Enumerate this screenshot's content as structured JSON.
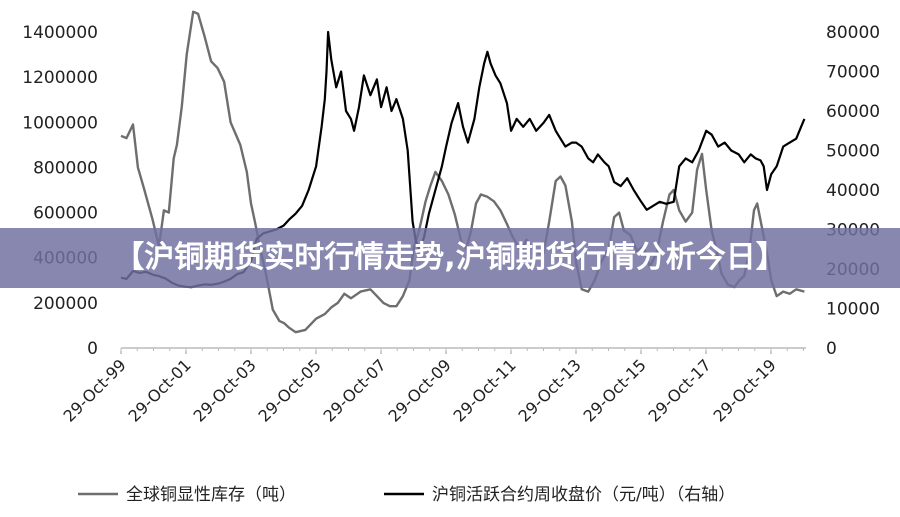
{
  "banner": {
    "title": "【沪铜期货实时行情走势,沪铜期货行情分析今日】"
  },
  "chart_data": {
    "type": "line",
    "title": "",
    "xlabel": "",
    "x_ticks": [
      "29-Oct-99",
      "29-Oct-01",
      "29-Oct-03",
      "29-Oct-05",
      "29-Oct-07",
      "29-Oct-09",
      "29-Oct-11",
      "29-Oct-13",
      "29-Oct-15",
      "29-Oct-17",
      "29-Oct-19"
    ],
    "x_range": [
      1999.83,
      2020.9
    ],
    "y_left": {
      "ticks": [
        "0",
        "200000",
        "400000",
        "600000",
        "800000",
        "1000000",
        "1200000",
        "1400000"
      ],
      "range": [
        0,
        1400000
      ]
    },
    "y_right": {
      "ticks": [
        "0",
        "10000",
        "20000",
        "30000",
        "40000",
        "50000",
        "60000",
        "70000",
        "80000"
      ],
      "range": [
        0,
        80000
      ]
    },
    "legend_position": "bottom",
    "grid": false,
    "series": [
      {
        "name": "全球铜显性库存（吨）",
        "axis": "left",
        "color": "#6e6e6e",
        "points": [
          [
            1999.83,
            940000
          ],
          [
            2000.0,
            930000
          ],
          [
            2000.2,
            990000
          ],
          [
            2000.35,
            800000
          ],
          [
            2000.55,
            700000
          ],
          [
            2000.8,
            570000
          ],
          [
            2001.0,
            450000
          ],
          [
            2001.15,
            610000
          ],
          [
            2001.3,
            600000
          ],
          [
            2001.45,
            840000
          ],
          [
            2001.55,
            900000
          ],
          [
            2001.7,
            1070000
          ],
          [
            2001.85,
            1300000
          ],
          [
            2002.05,
            1490000
          ],
          [
            2002.2,
            1480000
          ],
          [
            2002.4,
            1380000
          ],
          [
            2002.6,
            1270000
          ],
          [
            2002.8,
            1240000
          ],
          [
            2003.0,
            1180000
          ],
          [
            2003.2,
            1000000
          ],
          [
            2003.5,
            900000
          ],
          [
            2003.7,
            780000
          ],
          [
            2003.83,
            640000
          ],
          [
            2003.95,
            560000
          ],
          [
            2004.1,
            450000
          ],
          [
            2004.3,
            320000
          ],
          [
            2004.5,
            170000
          ],
          [
            2004.7,
            120000
          ],
          [
            2004.85,
            110000
          ],
          [
            2005.0,
            90000
          ],
          [
            2005.2,
            70000
          ],
          [
            2005.5,
            80000
          ],
          [
            2005.83,
            130000
          ],
          [
            2006.1,
            150000
          ],
          [
            2006.3,
            180000
          ],
          [
            2006.5,
            200000
          ],
          [
            2006.7,
            240000
          ],
          [
            2006.9,
            220000
          ],
          [
            2007.2,
            250000
          ],
          [
            2007.5,
            260000
          ],
          [
            2007.7,
            230000
          ],
          [
            2007.9,
            200000
          ],
          [
            2008.1,
            185000
          ],
          [
            2008.3,
            185000
          ],
          [
            2008.5,
            230000
          ],
          [
            2008.7,
            300000
          ],
          [
            2008.83,
            440000
          ],
          [
            2009.0,
            520000
          ],
          [
            2009.2,
            650000
          ],
          [
            2009.35,
            720000
          ],
          [
            2009.5,
            780000
          ],
          [
            2009.7,
            740000
          ],
          [
            2009.9,
            680000
          ],
          [
            2010.1,
            590000
          ],
          [
            2010.3,
            470000
          ],
          [
            2010.45,
            440000
          ],
          [
            2010.6,
            520000
          ],
          [
            2010.75,
            640000
          ],
          [
            2010.9,
            680000
          ],
          [
            2011.1,
            670000
          ],
          [
            2011.3,
            650000
          ],
          [
            2011.5,
            610000
          ],
          [
            2011.7,
            550000
          ],
          [
            2011.85,
            500000
          ],
          [
            2012.0,
            460000
          ],
          [
            2012.15,
            430000
          ],
          [
            2012.3,
            480000
          ],
          [
            2012.5,
            440000
          ],
          [
            2012.7,
            420000
          ],
          [
            2012.83,
            420000
          ],
          [
            2013.0,
            560000
          ],
          [
            2013.2,
            740000
          ],
          [
            2013.35,
            760000
          ],
          [
            2013.5,
            720000
          ],
          [
            2013.7,
            560000
          ],
          [
            2013.83,
            380000
          ],
          [
            2014.0,
            260000
          ],
          [
            2014.2,
            250000
          ],
          [
            2014.4,
            300000
          ],
          [
            2014.6,
            380000
          ],
          [
            2014.83,
            440000
          ],
          [
            2015.0,
            580000
          ],
          [
            2015.15,
            600000
          ],
          [
            2015.3,
            520000
          ],
          [
            2015.5,
            500000
          ],
          [
            2015.7,
            430000
          ],
          [
            2015.9,
            450000
          ],
          [
            2016.1,
            360000
          ],
          [
            2016.3,
            420000
          ],
          [
            2016.5,
            560000
          ],
          [
            2016.7,
            680000
          ],
          [
            2016.83,
            700000
          ],
          [
            2017.0,
            610000
          ],
          [
            2017.2,
            560000
          ],
          [
            2017.4,
            600000
          ],
          [
            2017.55,
            790000
          ],
          [
            2017.7,
            860000
          ],
          [
            2017.83,
            700000
          ],
          [
            2018.0,
            520000
          ],
          [
            2018.15,
            430000
          ],
          [
            2018.3,
            330000
          ],
          [
            2018.5,
            280000
          ],
          [
            2018.7,
            270000
          ],
          [
            2018.85,
            300000
          ],
          [
            2019.0,
            320000
          ],
          [
            2019.15,
            420000
          ],
          [
            2019.3,
            610000
          ],
          [
            2019.4,
            640000
          ],
          [
            2019.55,
            530000
          ],
          [
            2019.7,
            420000
          ],
          [
            2019.83,
            300000
          ],
          [
            2020.0,
            230000
          ],
          [
            2020.2,
            250000
          ],
          [
            2020.4,
            240000
          ],
          [
            2020.6,
            260000
          ],
          [
            2020.85,
            250000
          ]
        ]
      },
      {
        "name": "沪铜活跃合约周收盘价（元/吨）（右轴）",
        "axis": "right",
        "color": "#000000",
        "points": [
          [
            1999.83,
            17800
          ],
          [
            2000.0,
            17500
          ],
          [
            2000.2,
            19500
          ],
          [
            2000.4,
            19000
          ],
          [
            2000.6,
            19300
          ],
          [
            2000.83,
            18500
          ],
          [
            2001.0,
            18200
          ],
          [
            2001.2,
            17600
          ],
          [
            2001.4,
            16500
          ],
          [
            2001.6,
            15800
          ],
          [
            2001.83,
            15500
          ],
          [
            2002.0,
            15400
          ],
          [
            2002.2,
            15800
          ],
          [
            2002.4,
            16100
          ],
          [
            2002.6,
            16000
          ],
          [
            2002.83,
            16300
          ],
          [
            2003.0,
            16800
          ],
          [
            2003.2,
            17500
          ],
          [
            2003.4,
            18700
          ],
          [
            2003.6,
            19200
          ],
          [
            2003.83,
            22000
          ],
          [
            2004.0,
            27600
          ],
          [
            2004.2,
            29000
          ],
          [
            2004.4,
            29500
          ],
          [
            2004.6,
            30000
          ],
          [
            2004.83,
            31000
          ],
          [
            2005.0,
            32500
          ],
          [
            2005.2,
            34000
          ],
          [
            2005.4,
            36000
          ],
          [
            2005.6,
            40000
          ],
          [
            2005.83,
            46000
          ],
          [
            2006.0,
            56000
          ],
          [
            2006.1,
            63000
          ],
          [
            2006.15,
            70000
          ],
          [
            2006.2,
            80000
          ],
          [
            2006.3,
            73000
          ],
          [
            2006.45,
            66000
          ],
          [
            2006.6,
            70000
          ],
          [
            2006.75,
            60000
          ],
          [
            2006.9,
            58000
          ],
          [
            2007.0,
            55000
          ],
          [
            2007.15,
            61000
          ],
          [
            2007.3,
            69000
          ],
          [
            2007.5,
            64000
          ],
          [
            2007.7,
            68000
          ],
          [
            2007.83,
            61000
          ],
          [
            2008.0,
            66000
          ],
          [
            2008.15,
            60000
          ],
          [
            2008.3,
            63000
          ],
          [
            2008.5,
            58000
          ],
          [
            2008.65,
            50000
          ],
          [
            2008.8,
            32000
          ],
          [
            2008.9,
            27000
          ],
          [
            2009.0,
            25000
          ],
          [
            2009.15,
            28000
          ],
          [
            2009.3,
            34000
          ],
          [
            2009.5,
            40000
          ],
          [
            2009.7,
            46000
          ],
          [
            2009.83,
            51000
          ],
          [
            2010.0,
            57000
          ],
          [
            2010.2,
            62000
          ],
          [
            2010.35,
            56000
          ],
          [
            2010.5,
            52000
          ],
          [
            2010.7,
            58000
          ],
          [
            2010.85,
            66000
          ],
          [
            2011.0,
            72000
          ],
          [
            2011.1,
            75000
          ],
          [
            2011.2,
            72000
          ],
          [
            2011.35,
            69000
          ],
          [
            2011.5,
            67000
          ],
          [
            2011.7,
            62000
          ],
          [
            2011.83,
            55000
          ],
          [
            2012.0,
            58000
          ],
          [
            2012.2,
            56000
          ],
          [
            2012.4,
            58000
          ],
          [
            2012.6,
            55000
          ],
          [
            2012.83,
            57000
          ],
          [
            2013.0,
            59000
          ],
          [
            2013.2,
            55000
          ],
          [
            2013.35,
            53000
          ],
          [
            2013.5,
            51000
          ],
          [
            2013.7,
            52000
          ],
          [
            2013.83,
            52000
          ],
          [
            2014.0,
            51000
          ],
          [
            2014.2,
            48000
          ],
          [
            2014.35,
            47000
          ],
          [
            2014.5,
            49000
          ],
          [
            2014.7,
            47000
          ],
          [
            2014.83,
            46000
          ],
          [
            2015.0,
            42000
          ],
          [
            2015.2,
            41000
          ],
          [
            2015.4,
            43000
          ],
          [
            2015.6,
            40000
          ],
          [
            2015.83,
            37000
          ],
          [
            2016.0,
            35000
          ],
          [
            2016.2,
            36000
          ],
          [
            2016.4,
            37000
          ],
          [
            2016.6,
            36500
          ],
          [
            2016.83,
            37000
          ],
          [
            2017.0,
            46000
          ],
          [
            2017.2,
            48000
          ],
          [
            2017.4,
            47000
          ],
          [
            2017.6,
            50000
          ],
          [
            2017.83,
            55000
          ],
          [
            2018.0,
            54000
          ],
          [
            2018.2,
            51000
          ],
          [
            2018.4,
            52000
          ],
          [
            2018.6,
            50000
          ],
          [
            2018.83,
            49000
          ],
          [
            2019.0,
            47000
          ],
          [
            2019.2,
            49000
          ],
          [
            2019.35,
            48000
          ],
          [
            2019.5,
            47500
          ],
          [
            2019.6,
            46000
          ],
          [
            2019.7,
            40000
          ],
          [
            2019.83,
            44000
          ],
          [
            2020.0,
            46000
          ],
          [
            2020.2,
            51000
          ],
          [
            2020.4,
            52000
          ],
          [
            2020.6,
            53000
          ],
          [
            2020.75,
            56000
          ],
          [
            2020.85,
            58000
          ]
        ]
      }
    ]
  }
}
